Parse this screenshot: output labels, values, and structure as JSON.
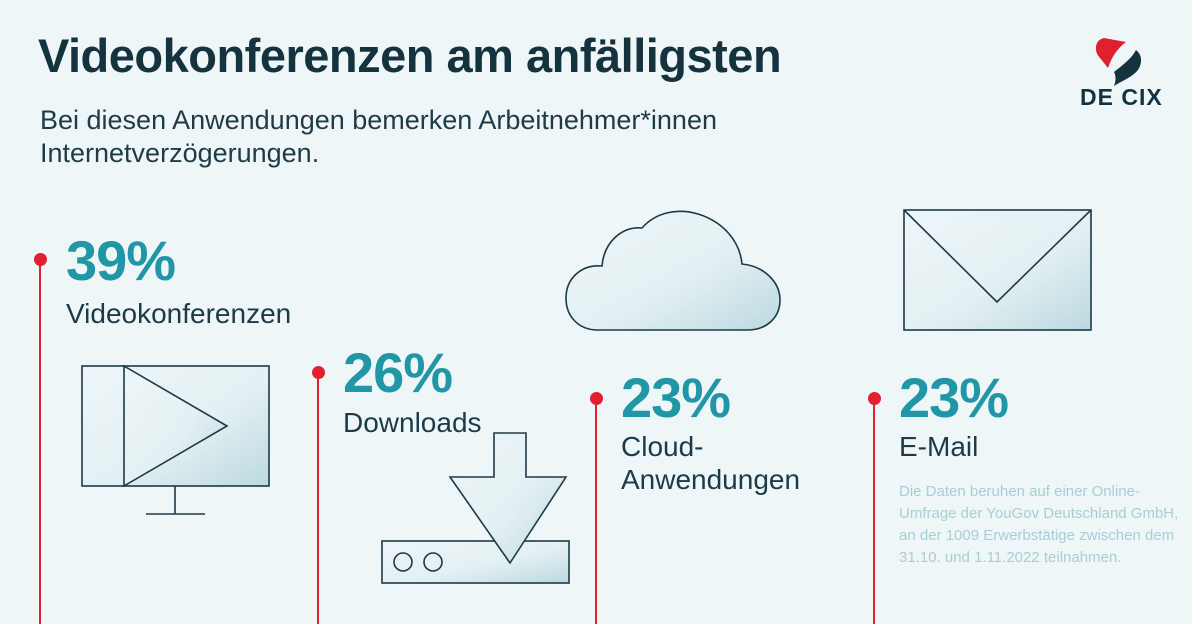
{
  "header": {
    "title": "Videokonferenzen am anfälligsten",
    "subtitle": "Bei diesen Anwendungen bemerken Arbeitnehmer*innen Internetverzögerungen."
  },
  "logo": {
    "text": "DE CIX"
  },
  "chart_data": {
    "type": "bar",
    "title": "Videokonferenzen am anfälligsten",
    "subtitle": "Bei diesen Anwendungen bemerken Arbeitnehmer*innen Internetverzögerungen.",
    "categories": [
      "Videokonferenzen",
      "Downloads",
      "Cloud-Anwendungen",
      "E-Mail"
    ],
    "values": [
      39,
      26,
      23,
      23
    ],
    "value_labels": [
      "39%",
      "26%",
      "23%",
      "23%"
    ],
    "unit": "%"
  },
  "items": [
    {
      "value": "39%",
      "label": "Videokonferenzen",
      "icon": "monitor-play-icon"
    },
    {
      "value": "26%",
      "label": "Downloads",
      "icon": "download-icon"
    },
    {
      "value": "23%",
      "label": "Cloud-",
      "label2": "Anwendungen",
      "icon": "cloud-icon"
    },
    {
      "value": "23%",
      "label": "E-Mail",
      "icon": "envelope-icon"
    }
  ],
  "note": "Die Daten beruhen auf einer Online-Umfrage der YouGov Deutschland GmbH, an der 1009 Erwerbstätige zwischen dem 31.10. und 1.11.2022 teilnahmen.",
  "colors": {
    "background": "#eef6f8",
    "accent": "#2196a6",
    "marker": "#e0202e",
    "text": "#15323f",
    "logo_red": "#e0202e"
  }
}
